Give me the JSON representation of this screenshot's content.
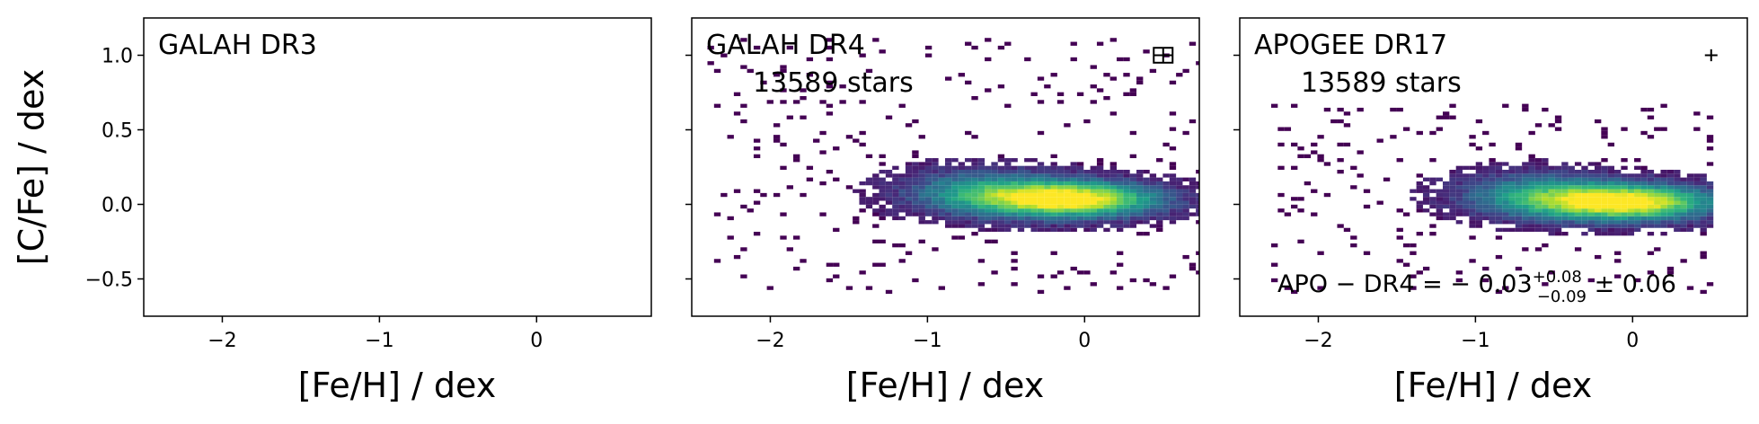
{
  "chart_data": [
    {
      "type": "heatmap",
      "title": "GALAH DR3",
      "xlabel": "[Fe/H] / dex",
      "ylabel": "[C/Fe] / dex",
      "xlim": [
        -2.5,
        0.73
      ],
      "ylim": [
        -0.75,
        1.25
      ],
      "xticks": [
        -2,
        -1,
        0
      ],
      "xtick_labels": [
        "−2",
        "−1",
        "0"
      ],
      "yticks": [
        -0.5,
        0.0,
        0.5,
        1.0
      ],
      "ytick_labels": [
        "−0.5",
        "0.0",
        "0.5",
        "1.0"
      ],
      "empty": true
    },
    {
      "type": "heatmap",
      "title": "GALAH DR4",
      "count_label": "13589 stars",
      "xlabel": "[Fe/H] / dex",
      "xlim": [
        -2.5,
        0.73
      ],
      "ylim": [
        -0.75,
        1.25
      ],
      "xticks": [
        -2,
        -1,
        0
      ],
      "xtick_labels": [
        "−2",
        "−1",
        "0"
      ],
      "yticks": [
        -0.5,
        0.0,
        0.5,
        1.0
      ],
      "colormap": "viridis",
      "density_peak": {
        "x": -0.1,
        "y": 0.02
      },
      "extent": {
        "x": [
          -2.4,
          0.73
        ],
        "y": [
          -0.6,
          1.1
        ]
      },
      "errorbar": {
        "x": 0.5,
        "y": 1.0,
        "xerr": 0.06,
        "yerr": 0.05
      }
    },
    {
      "type": "heatmap",
      "title": "APOGEE DR17",
      "count_label": "13589 stars",
      "xlabel": "[Fe/H] / dex",
      "xlim": [
        -2.5,
        0.73
      ],
      "ylim": [
        -0.75,
        1.25
      ],
      "xticks": [
        -2,
        -1,
        0
      ],
      "xtick_labels": [
        "−2",
        "−1",
        "0"
      ],
      "yticks": [
        -0.5,
        0.0,
        0.5,
        1.0
      ],
      "colormap": "viridis",
      "density_peak": {
        "x": -0.05,
        "y": 0.0
      },
      "extent": {
        "x": [
          -2.3,
          0.5
        ],
        "y": [
          -0.6,
          0.7
        ]
      },
      "errorbar": {
        "x": 0.5,
        "y": 1.0,
        "xerr": 0.04,
        "yerr": 0.04
      },
      "annotation": {
        "prefix": "APO − DR4 = − 0.03",
        "sup": "+0.08",
        "sub": "−0.09",
        "suffix": " ± 0.06"
      }
    }
  ]
}
